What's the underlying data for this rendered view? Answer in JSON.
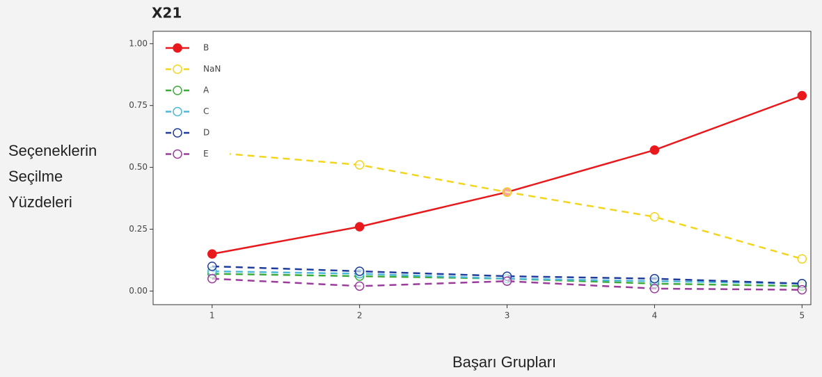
{
  "chart_data": {
    "type": "line",
    "title": "X21",
    "x_label": "Başarı Grupları",
    "y_label": [
      "Seçeneklerin",
      "Seçilme",
      "Yüzdeleri"
    ],
    "x": [
      1,
      2,
      3,
      4,
      5
    ],
    "xlim": [
      0.6,
      5.06
    ],
    "xticks": [
      1,
      2,
      3,
      4,
      5
    ],
    "ylim": [
      -0.055,
      1.05
    ],
    "yticks": [
      {
        "value": 0,
        "label": "0.00"
      },
      {
        "value": 0.25,
        "label": "0.25"
      },
      {
        "value": 0.5,
        "label": "0.50"
      },
      {
        "value": 0.75,
        "label": "0.75"
      },
      {
        "value": 1,
        "label": "1.00"
      }
    ],
    "legend": "upper-left",
    "series": [
      {
        "name": "B",
        "color": "#e8191c",
        "dashed": false,
        "filled": true,
        "values": [
          0.15,
          0.26,
          0.4,
          0.57,
          0.79
        ]
      },
      {
        "name": "NaN",
        "color": "#f2d51f",
        "dashed": true,
        "filled": false,
        "values": [
          0.56,
          0.51,
          0.4,
          0.3,
          0.13
        ]
      },
      {
        "name": "A",
        "color": "#3cab3a",
        "dashed": true,
        "filled": false,
        "values": [
          0.07,
          0.06,
          0.05,
          0.03,
          0.02
        ]
      },
      {
        "name": "C",
        "color": "#4ab8d8",
        "dashed": true,
        "filled": false,
        "values": [
          0.08,
          0.07,
          0.05,
          0.04,
          0.03
        ]
      },
      {
        "name": "D",
        "color": "#1f3c9c",
        "dashed": true,
        "filled": false,
        "values": [
          0.1,
          0.08,
          0.06,
          0.05,
          0.03
        ]
      },
      {
        "name": "E",
        "color": "#9b3c9c",
        "dashed": true,
        "filled": false,
        "values": [
          0.05,
          0.02,
          0.04,
          0.01,
          0.005
        ]
      }
    ]
  }
}
